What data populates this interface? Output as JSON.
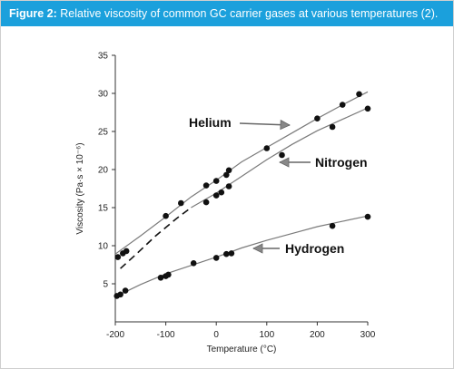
{
  "figure": {
    "label": "Figure 2:",
    "caption": "Relative viscosity of common GC carrier gases at various temperatures (2)."
  },
  "chart_data": {
    "type": "scatter",
    "title": "",
    "xlabel": "Temperature (°C)",
    "ylabel": "Viscosity (Pa·s × 10⁻⁶)",
    "xlim": [
      -200,
      300
    ],
    "ylim": [
      0,
      35
    ],
    "xticks": [
      -200,
      -100,
      0,
      100,
      200,
      300
    ],
    "yticks": [
      5,
      10,
      15,
      20,
      25,
      30,
      35
    ],
    "grid": false,
    "legend": "none (inline arrow annotations)",
    "series": [
      {
        "name": "Helium",
        "line": [
          [
            -200,
            8.9
          ],
          [
            -150,
            11.3
          ],
          [
            -100,
            13.8
          ],
          [
            -50,
            16.4
          ],
          [
            0,
            18.6
          ],
          [
            50,
            21.0
          ],
          [
            100,
            22.9
          ],
          [
            150,
            24.8
          ],
          [
            200,
            26.7
          ],
          [
            250,
            28.5
          ],
          [
            300,
            30.2
          ]
        ],
        "points": [
          [
            -195,
            8.5
          ],
          [
            -185,
            9.0
          ],
          [
            -178,
            9.3
          ],
          [
            -100,
            13.9
          ],
          [
            -70,
            15.6
          ],
          [
            -20,
            17.9
          ],
          [
            0,
            18.5
          ],
          [
            25,
            19.9
          ],
          [
            100,
            22.8
          ],
          [
            200,
            26.7
          ],
          [
            250,
            28.5
          ],
          [
            283,
            29.9
          ]
        ]
      },
      {
        "name": "Nitrogen",
        "line": [
          [
            -50,
            15.0
          ],
          [
            0,
            16.9
          ],
          [
            50,
            19.1
          ],
          [
            100,
            21.3
          ],
          [
            150,
            23.3
          ],
          [
            200,
            25.1
          ],
          [
            250,
            26.6
          ],
          [
            300,
            28.1
          ]
        ],
        "dashed": [
          [
            -190,
            7.0
          ],
          [
            -160,
            8.8
          ],
          [
            -120,
            11.3
          ],
          [
            -80,
            13.5
          ],
          [
            -50,
            15.0
          ]
        ],
        "points": [
          [
            -20,
            15.7
          ],
          [
            0,
            16.6
          ],
          [
            10,
            17.0
          ],
          [
            25,
            17.8
          ],
          [
            20,
            19.3
          ],
          [
            130,
            21.9
          ],
          [
            230,
            25.6
          ],
          [
            300,
            28.0
          ]
        ]
      },
      {
        "name": "Hydrogen",
        "line": [
          [
            -200,
            3.3
          ],
          [
            -150,
            4.9
          ],
          [
            -100,
            6.3
          ],
          [
            -50,
            7.4
          ],
          [
            0,
            8.5
          ],
          [
            50,
            9.7
          ],
          [
            100,
            10.7
          ],
          [
            150,
            11.6
          ],
          [
            200,
            12.5
          ],
          [
            250,
            13.2
          ],
          [
            300,
            13.9
          ]
        ],
        "points": [
          [
            -197,
            3.4
          ],
          [
            -190,
            3.6
          ],
          [
            -180,
            4.1
          ],
          [
            -110,
            5.8
          ],
          [
            -100,
            6.0
          ],
          [
            -95,
            6.2
          ],
          [
            -45,
            7.7
          ],
          [
            0,
            8.4
          ],
          [
            20,
            8.9
          ],
          [
            30,
            9.0
          ],
          [
            230,
            12.6
          ],
          [
            300,
            13.8
          ]
        ]
      }
    ],
    "annotations": [
      {
        "text": "Helium",
        "series": "Helium"
      },
      {
        "text": "Nitrogen",
        "series": "Nitrogen"
      },
      {
        "text": "Hydrogen",
        "series": "Hydrogen"
      }
    ]
  }
}
